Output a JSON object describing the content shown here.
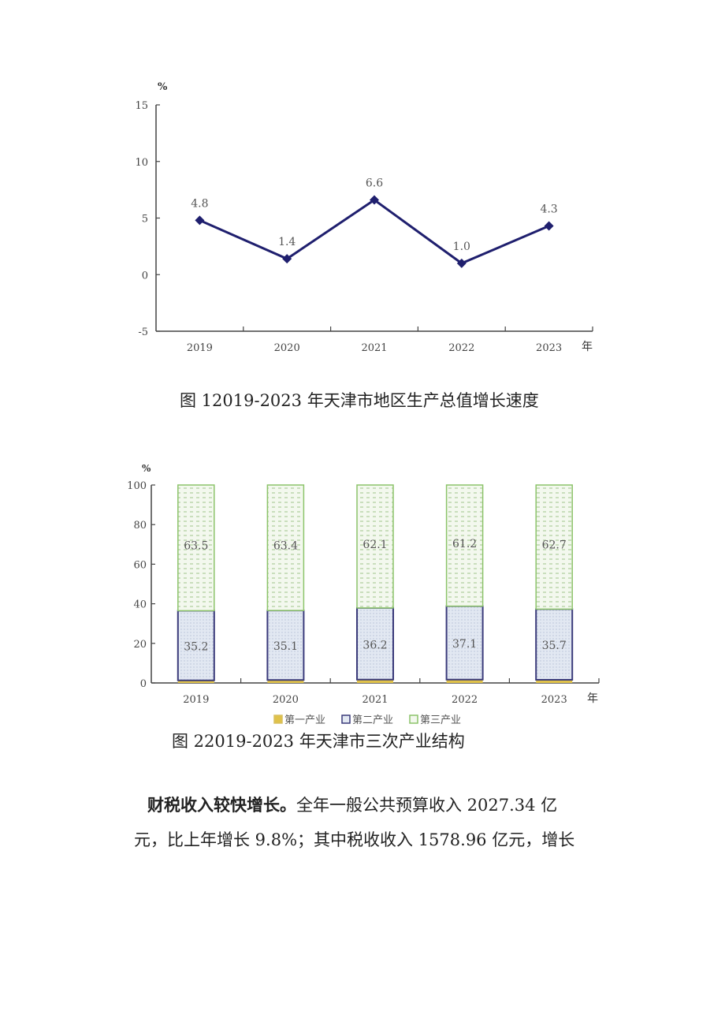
{
  "figure1": {
    "caption": "图 12019-2023 年天津市地区生产总值增长速度"
  },
  "figure2": {
    "caption": "图 22019-2023 年天津市三次产业结构"
  },
  "paragraph": {
    "lead": "财税收入较快增长。",
    "line1_rest": "全年一般公共预算收入 2027.34 亿",
    "line2": "元，比上年增长 9.8%；其中税收收入 1578.96 亿元，增长"
  },
  "colors": {
    "line": "#1f1f6e",
    "primary": "#e0c24a",
    "secondary_border": "#3a3a7a",
    "secondary_fill": "#dbe3f0",
    "tertiary_border": "#8cc36a",
    "tertiary_fill": "#eef6e6"
  },
  "chart_data": [
    {
      "type": "line",
      "title": "2019-2023年天津市地区生产总值增长速度",
      "categories": [
        "2019",
        "2020",
        "2021",
        "2022",
        "2023"
      ],
      "values": [
        4.8,
        1.4,
        6.6,
        1.0,
        4.3
      ],
      "data_labels": [
        "4.8",
        "1.4",
        "6.6",
        "1.0",
        "4.3"
      ],
      "xlabel": "年",
      "ylabel": "%",
      "ylim": [
        -5,
        15
      ],
      "yticks": [
        "15",
        "10",
        "5",
        "0",
        "-5"
      ],
      "grid": false,
      "marker": "diamond"
    },
    {
      "type": "bar",
      "stacked": true,
      "title": "2019-2023年天津市三次产业结构",
      "categories": [
        "2019",
        "2020",
        "2021",
        "2022",
        "2023"
      ],
      "series": [
        {
          "name": "第一产业",
          "values": [
            1.3,
            1.5,
            1.7,
            1.7,
            1.6
          ]
        },
        {
          "name": "第二产业",
          "values": [
            35.2,
            35.1,
            36.2,
            37.1,
            35.7
          ]
        },
        {
          "name": "第三产业",
          "values": [
            63.5,
            63.4,
            62.1,
            61.2,
            62.7
          ]
        }
      ],
      "data_labels": {
        "第二产业": [
          "35.2",
          "35.1",
          "36.2",
          "37.1",
          "35.7"
        ],
        "第三产业": [
          "63.5",
          "63.4",
          "62.1",
          "61.2",
          "62.7"
        ]
      },
      "xlabel": "年",
      "ylabel": "%",
      "ylim": [
        0,
        100
      ],
      "yticks": [
        "100",
        "80",
        "60",
        "40",
        "20",
        "0"
      ],
      "legend": [
        "第一产业",
        "第二产业",
        "第三产业"
      ],
      "legend_position": "bottom",
      "grid": false
    }
  ]
}
